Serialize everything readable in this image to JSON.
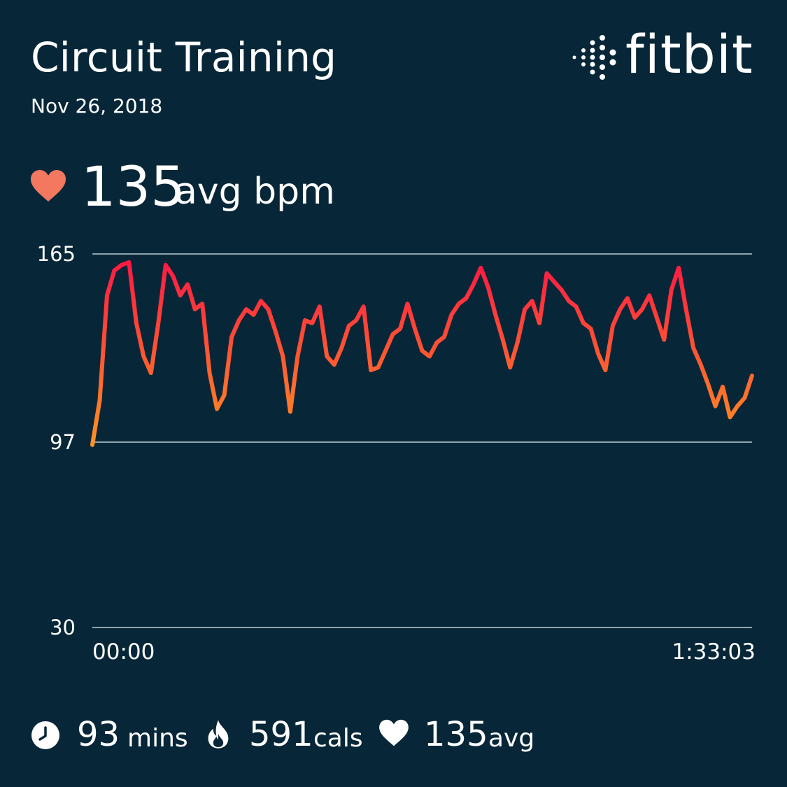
{
  "header": {
    "title": "Circuit Training",
    "date": "Nov 26, 2018"
  },
  "brand": {
    "name": "fitbit",
    "logo_icon": "fitbit-dots-icon"
  },
  "average": {
    "icon": "heart-icon",
    "value": "135",
    "unit": "avg bpm"
  },
  "colors": {
    "background": "#072738",
    "heart": "#F4785F",
    "line_high": "#FF1446",
    "line_low": "#FF9A1F",
    "grid": "#8EA3AD",
    "text": "#FFFFFF"
  },
  "chart_data": {
    "type": "line",
    "x": [
      "00:00",
      "00:02",
      "00:05",
      "00:06",
      "00:07",
      "00:08",
      "00:09",
      "00:10",
      "00:11",
      "00:12",
      "00:13",
      "00:14",
      "00:15",
      "00:16",
      "00:17",
      "00:18",
      "00:19",
      "00:20",
      "00:21",
      "00:22",
      "00:23",
      "00:24",
      "00:25",
      "00:26",
      "00:27",
      "00:28",
      "00:29",
      "00:30",
      "00:31",
      "00:32",
      "00:33",
      "00:34",
      "00:35",
      "00:36",
      "00:37",
      "00:38",
      "00:39",
      "00:40",
      "00:41",
      "00:42",
      "00:43",
      "00:44",
      "00:45",
      "00:46",
      "00:47",
      "00:48",
      "00:49",
      "00:50",
      "00:51",
      "00:52",
      "00:53",
      "00:54",
      "00:55",
      "00:56",
      "00:57",
      "00:58",
      "00:59",
      "01:00",
      "01:01",
      "01:02",
      "01:03",
      "01:04",
      "01:05",
      "01:06",
      "01:07",
      "01:08",
      "01:09",
      "01:10",
      "01:11",
      "01:12",
      "01:13",
      "01:14",
      "01:15",
      "01:16",
      "01:17",
      "01:18",
      "01:19",
      "01:20",
      "01:21",
      "01:22",
      "01:23",
      "01:24",
      "01:25",
      "01:26",
      "01:27",
      "01:28",
      "01:29",
      "01:30",
      "01:31",
      "01:32",
      "01:33"
    ],
    "values": [
      96,
      112,
      150,
      159,
      161,
      162,
      140,
      128,
      122,
      140,
      161,
      157,
      150,
      154,
      145,
      147,
      122,
      109,
      114,
      135,
      141,
      145,
      143,
      148,
      145,
      137,
      128,
      108,
      128,
      141,
      140,
      146,
      128,
      125,
      131,
      139,
      141,
      146,
      123,
      124,
      130,
      136,
      138,
      147,
      138,
      130,
      128,
      133,
      135,
      143,
      147,
      149,
      154,
      160,
      153,
      143,
      134,
      124,
      133,
      145,
      148,
      140,
      158,
      155,
      152,
      148,
      146,
      140,
      138,
      129,
      123,
      139,
      145,
      149,
      142,
      145,
      150,
      142,
      134,
      152,
      160,
      145,
      131,
      125,
      118,
      110,
      117,
      106,
      110,
      113,
      121
    ],
    "title": "",
    "xlabel": "",
    "ylabel": "",
    "ylim": [
      30,
      165
    ],
    "yticks": [
      "165",
      "97",
      "30"
    ],
    "xticks": [
      "00:00",
      "1:33:03"
    ],
    "grid": true
  },
  "stats": {
    "duration": {
      "icon": "clock-icon",
      "value": "93",
      "unit": "mins"
    },
    "calories": {
      "icon": "flame-icon",
      "value": "591",
      "unit": "cals"
    },
    "heart": {
      "icon": "heart-icon",
      "value": "135",
      "unit": "avg"
    }
  }
}
